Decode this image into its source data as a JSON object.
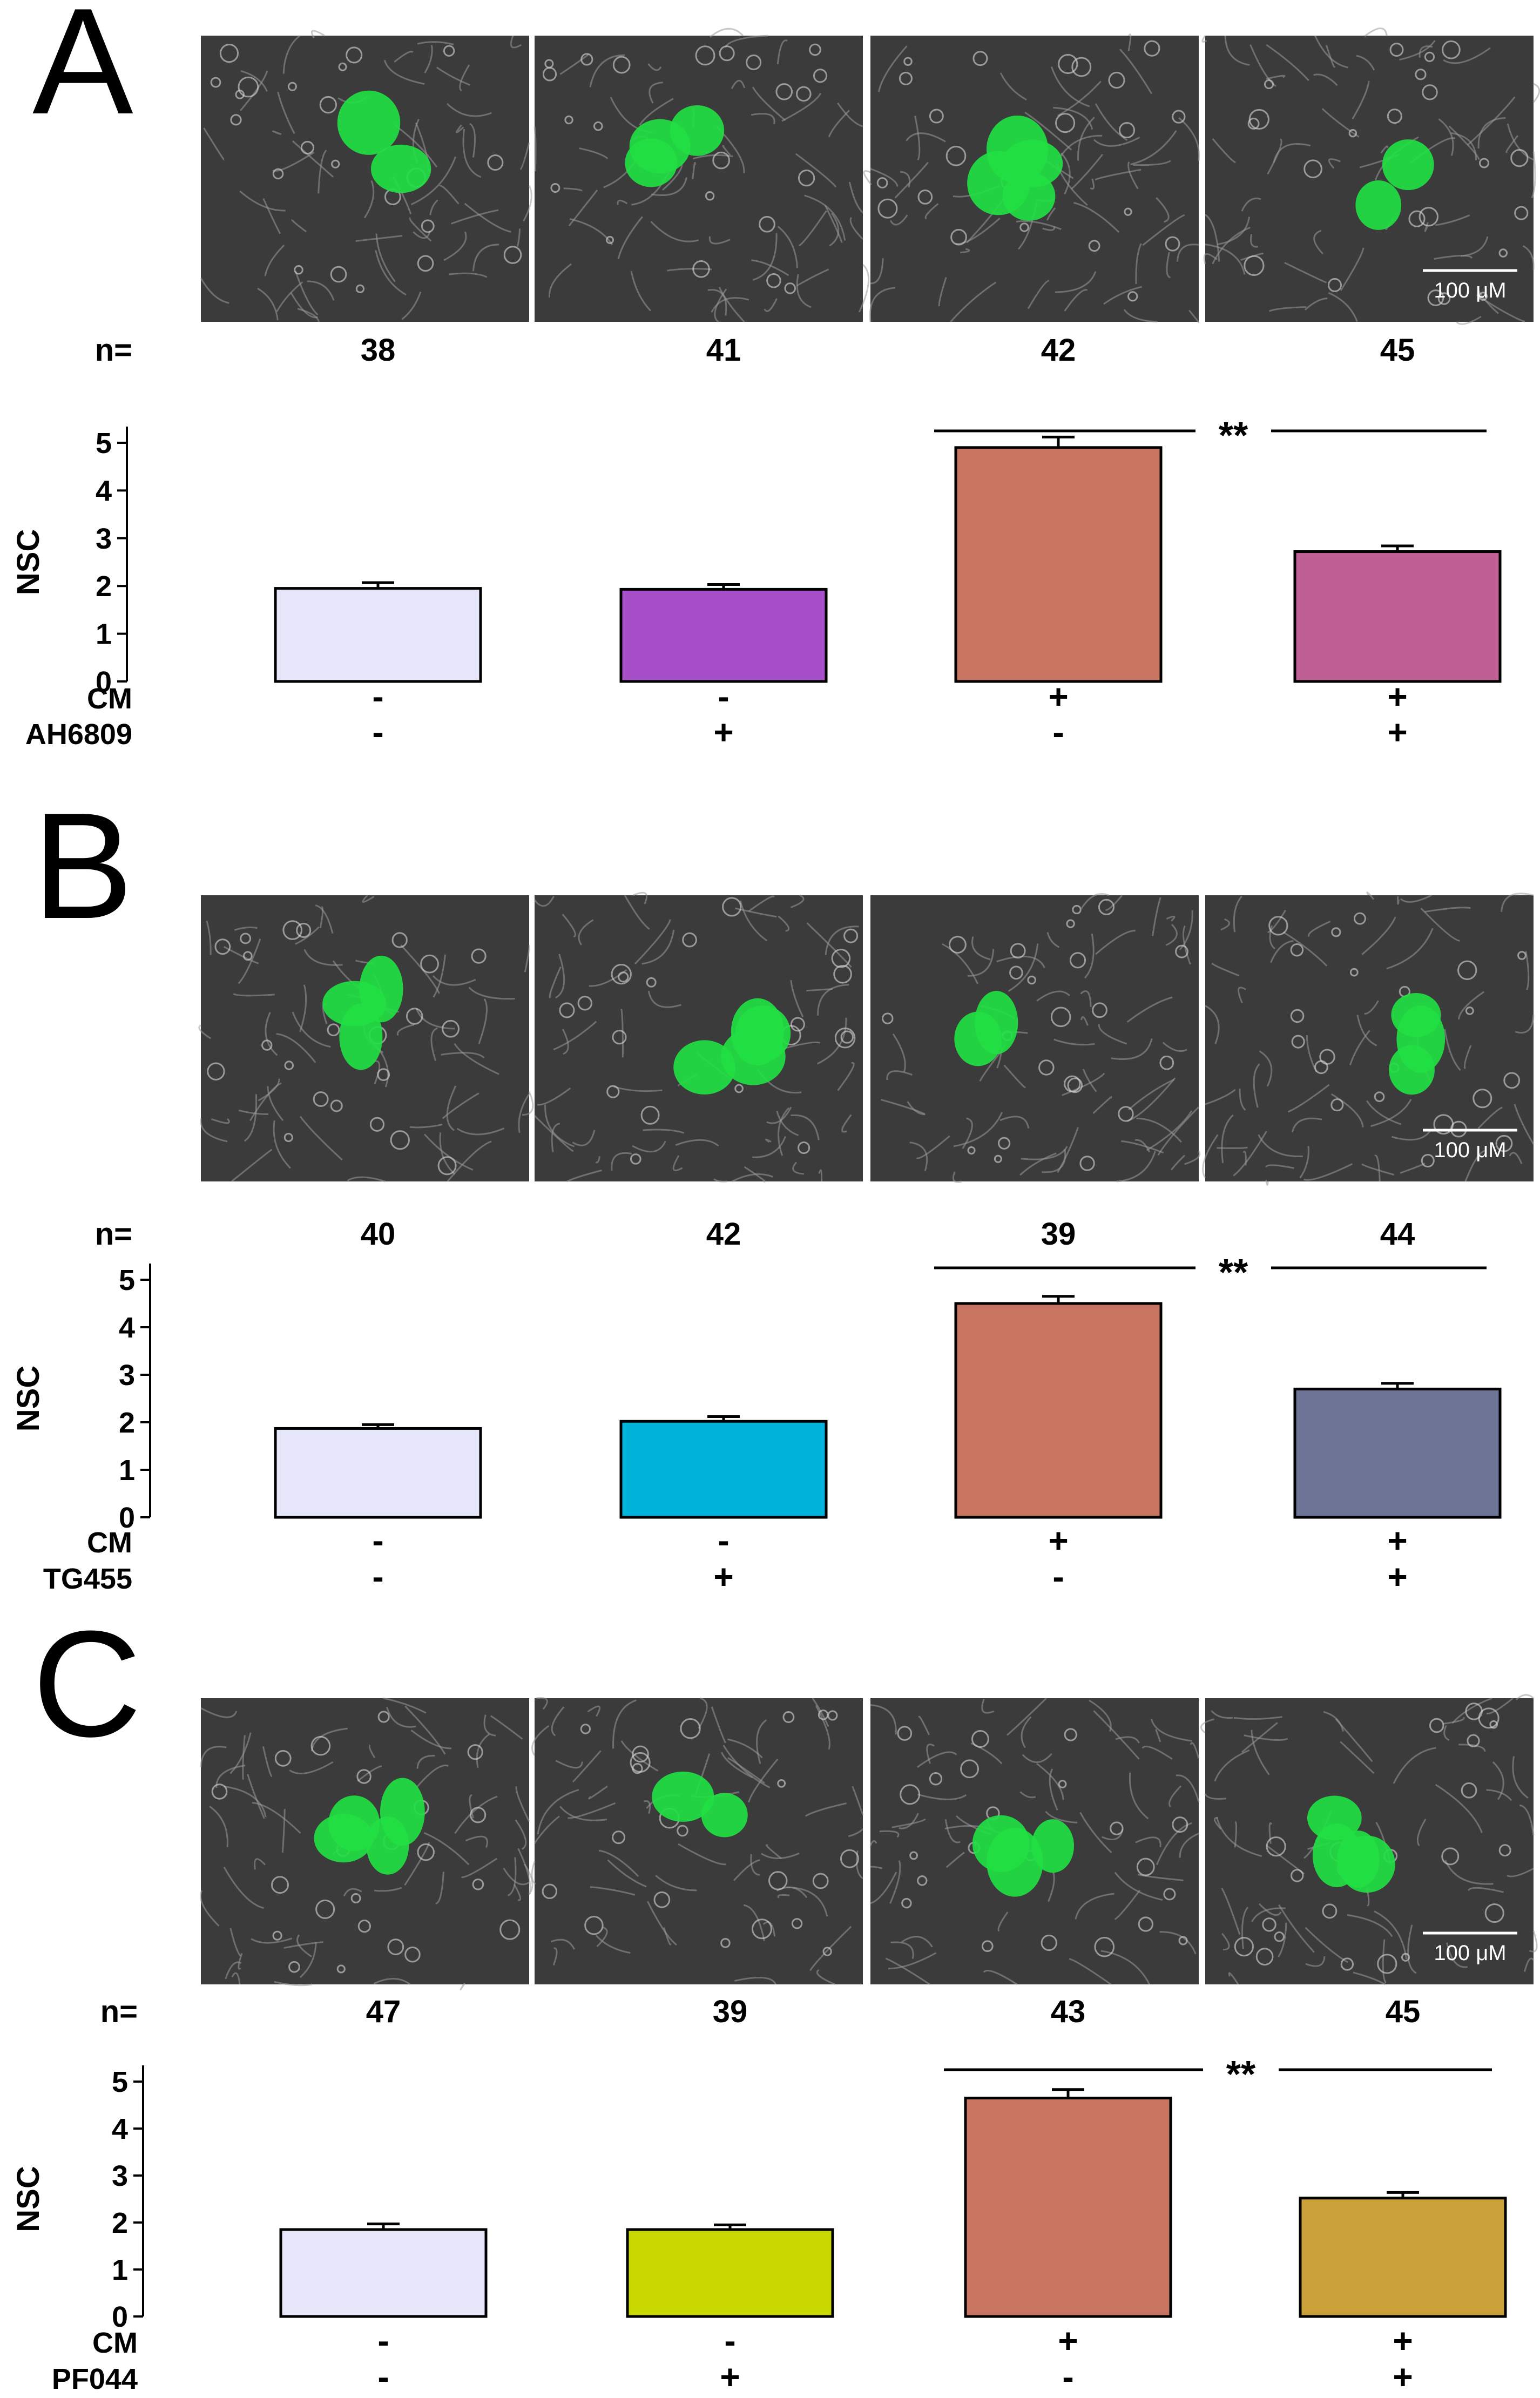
{
  "colors": {
    "cell_green": "#22e043",
    "micro_bg": "#3b3b3b",
    "micro_line": "#9a9a9a"
  },
  "chart_data": [
    {
      "type": "bar",
      "panel": "A",
      "n_label": "n=",
      "n": [
        "38",
        "41",
        "42",
        "45"
      ],
      "ylabel": "NSC",
      "ylim": [
        0,
        5
      ],
      "yticks": [
        "0",
        "1",
        "2",
        "3",
        "4",
        "5"
      ],
      "values": [
        1.95,
        1.93,
        4.9,
        2.72
      ],
      "errors": [
        0.12,
        0.1,
        0.22,
        0.12
      ],
      "colors": [
        "#e6e6fa",
        "#a64fc8",
        "#c87561",
        "#bf5f95"
      ],
      "conditions": [
        {
          "label": "CM",
          "signs": [
            "-",
            "-",
            "+",
            "+"
          ]
        },
        {
          "label": "AH6809",
          "signs": [
            "-",
            "+",
            "-",
            "+"
          ]
        }
      ],
      "significance": {
        "text": "**",
        "between": [
          2,
          3
        ]
      },
      "scale_bar": "100 μM"
    },
    {
      "type": "bar",
      "panel": "B",
      "n_label": "n=",
      "n": [
        "40",
        "42",
        "39",
        "44"
      ],
      "ylabel": "NSC",
      "ylim": [
        0,
        5
      ],
      "yticks": [
        "0",
        "1",
        "2",
        "3",
        "4",
        "5"
      ],
      "values": [
        1.87,
        2.02,
        4.5,
        2.7
      ],
      "errors": [
        0.08,
        0.1,
        0.15,
        0.12
      ],
      "colors": [
        "#e6e6fa",
        "#00b3db",
        "#c87561",
        "#6d7496"
      ],
      "conditions": [
        {
          "label": "CM",
          "signs": [
            "-",
            "-",
            "+",
            "+"
          ]
        },
        {
          "label": "TG455",
          "signs": [
            "-",
            "+",
            "-",
            "+"
          ]
        }
      ],
      "significance": {
        "text": "**",
        "between": [
          2,
          3
        ]
      },
      "scale_bar": "100 μM"
    },
    {
      "type": "bar",
      "panel": "C",
      "n_label": "n=",
      "n": [
        "47",
        "39",
        "43",
        "45"
      ],
      "ylabel": "NSC",
      "ylim": [
        0,
        5
      ],
      "yticks": [
        "0",
        "1",
        "2",
        "3",
        "4",
        "5"
      ],
      "values": [
        1.85,
        1.85,
        4.65,
        2.52
      ],
      "errors": [
        0.12,
        0.1,
        0.18,
        0.12
      ],
      "colors": [
        "#e6e6fa",
        "#c8d800",
        "#c87561",
        "#cba23a"
      ],
      "conditions": [
        {
          "label": "CM",
          "signs": [
            "-",
            "-",
            "+",
            "+"
          ]
        },
        {
          "label": "PF044",
          "signs": [
            "-",
            "+",
            "-",
            "+"
          ]
        }
      ],
      "significance": {
        "text": "**",
        "between": [
          2,
          3
        ]
      },
      "scale_bar": "100 μM"
    }
  ]
}
